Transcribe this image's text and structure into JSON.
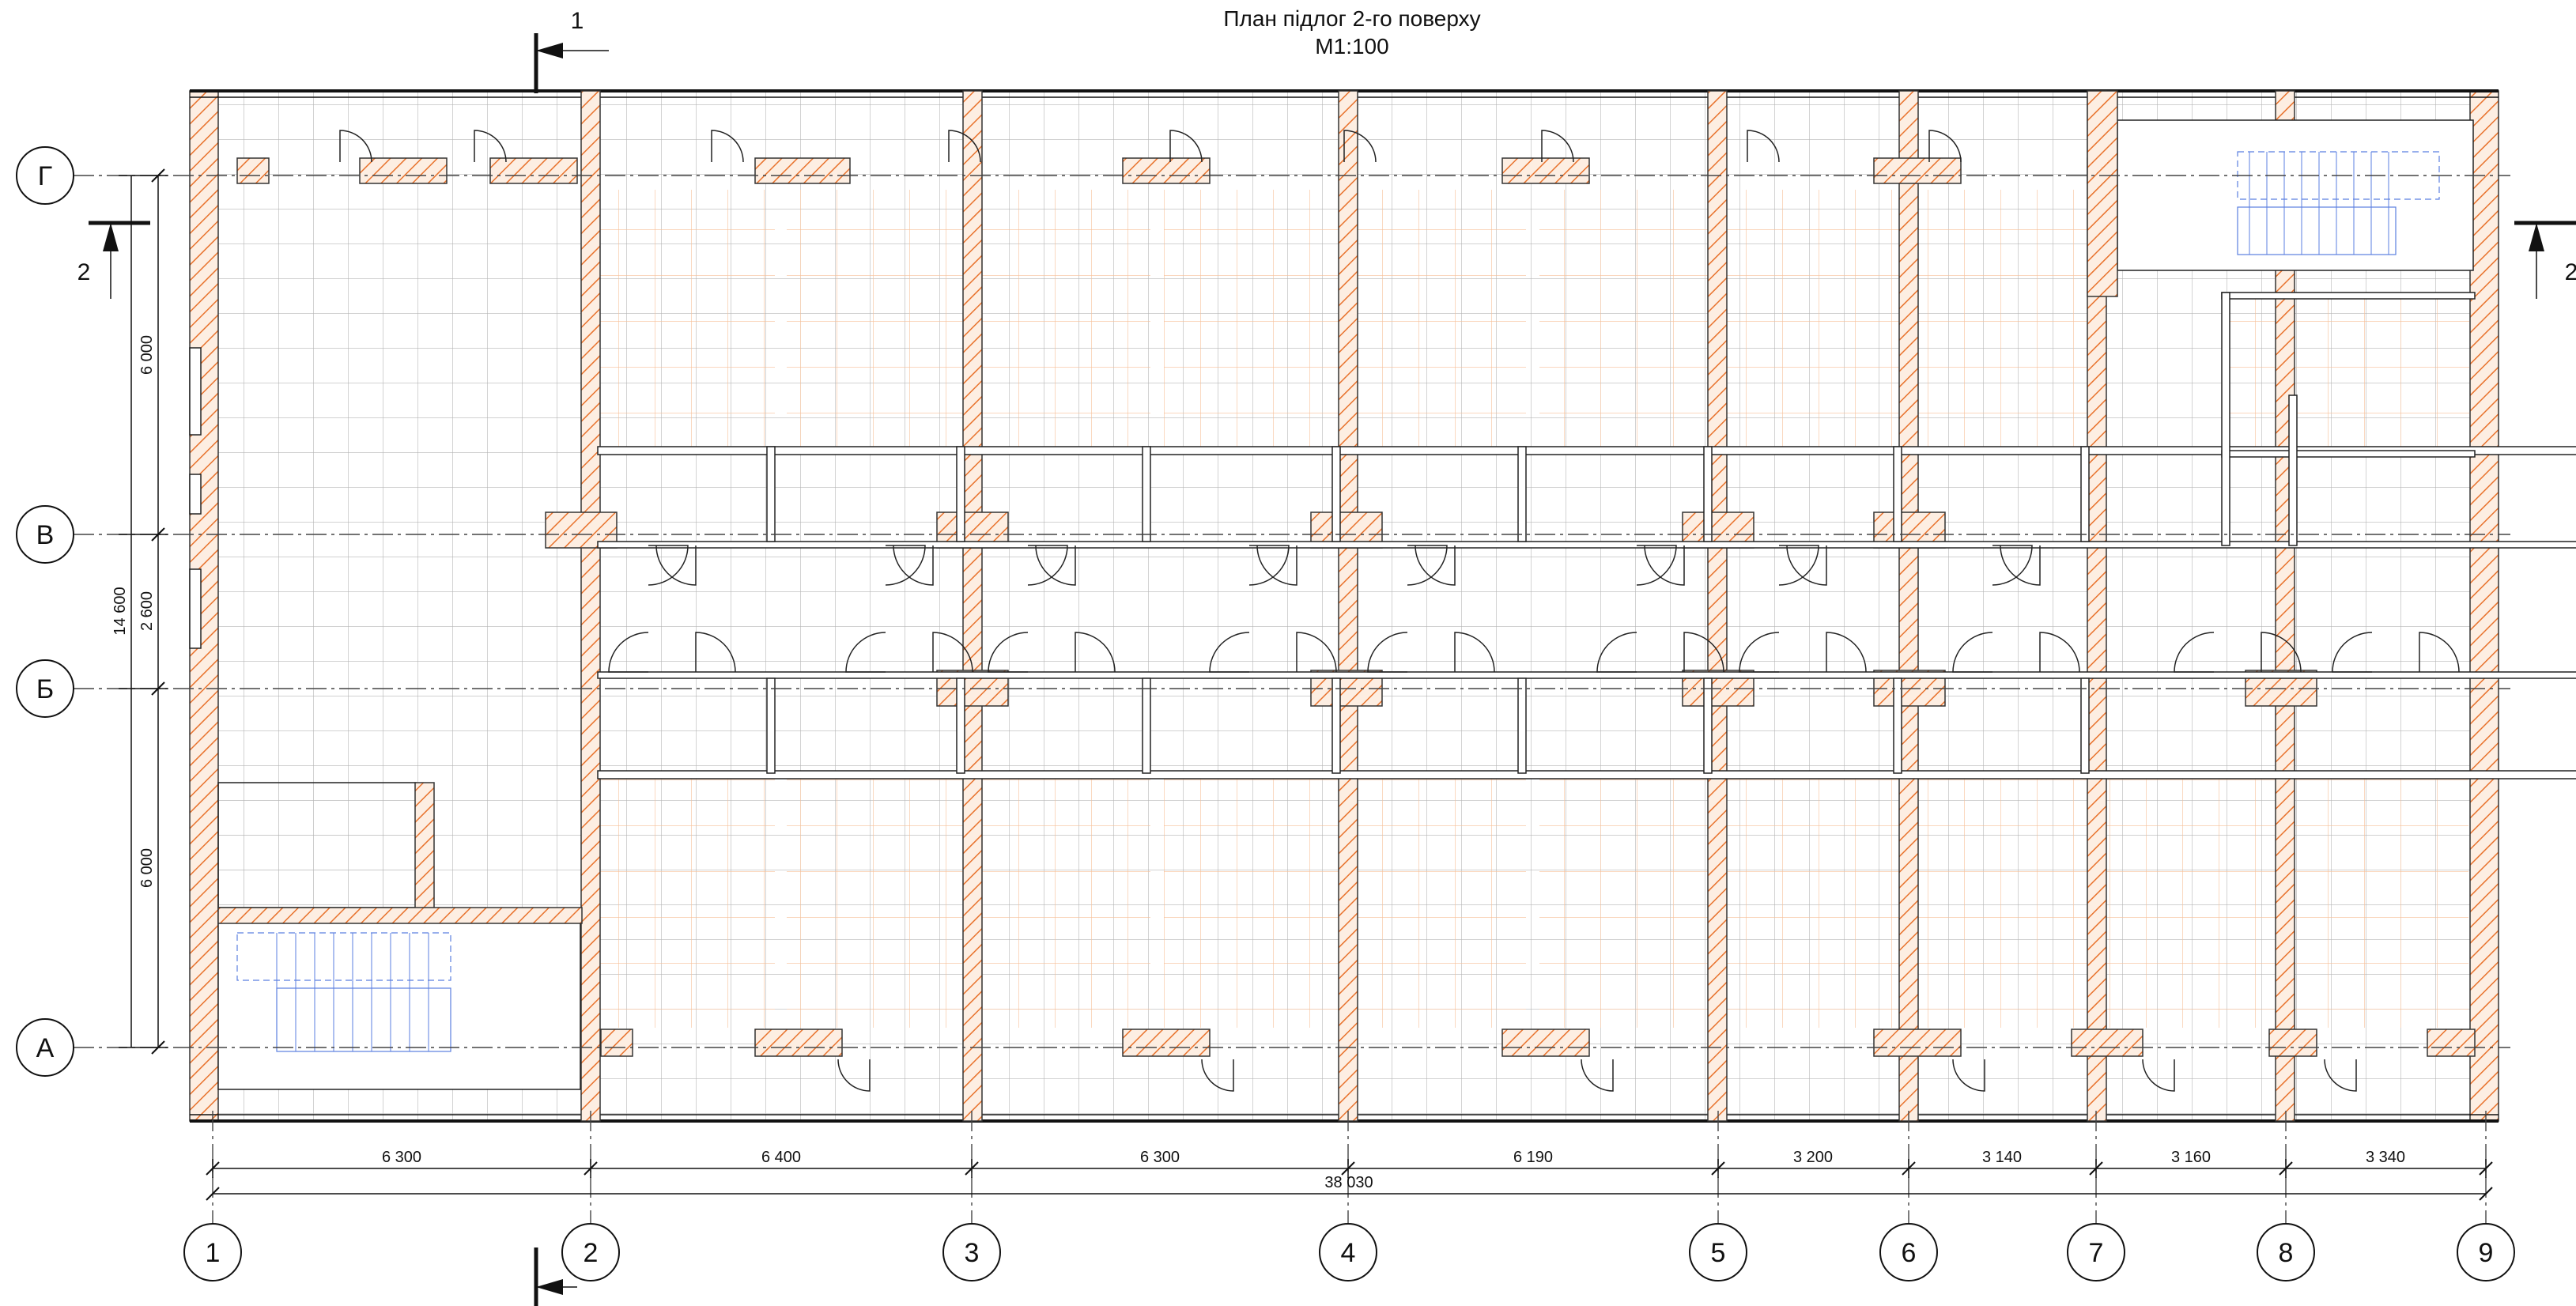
{
  "title": {
    "line1": "План підлог 2-го поверху",
    "line2": "М1:100"
  },
  "axes": {
    "rows": [
      {
        "label": "Г"
      },
      {
        "label": "В"
      },
      {
        "label": "Б"
      },
      {
        "label": "А"
      }
    ],
    "columns": [
      {
        "label": "1"
      },
      {
        "label": "2"
      },
      {
        "label": "3"
      },
      {
        "label": "4"
      },
      {
        "label": "5"
      },
      {
        "label": "6"
      },
      {
        "label": "7"
      },
      {
        "label": "8"
      },
      {
        "label": "9"
      }
    ]
  },
  "dimensions": {
    "bays": [
      "6 300",
      "6 400",
      "6 300",
      "6 190",
      "3 200",
      "3 140",
      "3 160",
      "3 340"
    ],
    "total_length": "38 030",
    "vertical": [
      "6 000",
      "2 600",
      "6 000"
    ],
    "total_width": "14 600"
  },
  "sections": {
    "s1_top": "1",
    "s2_left": "2",
    "s2_right": "2"
  },
  "colors": {
    "wall_hatch": "#e8722c",
    "tile_grid": "#a9a9a9",
    "room_grid": "#f4b183",
    "stair": "#5b7fe0",
    "line": "#111111"
  }
}
